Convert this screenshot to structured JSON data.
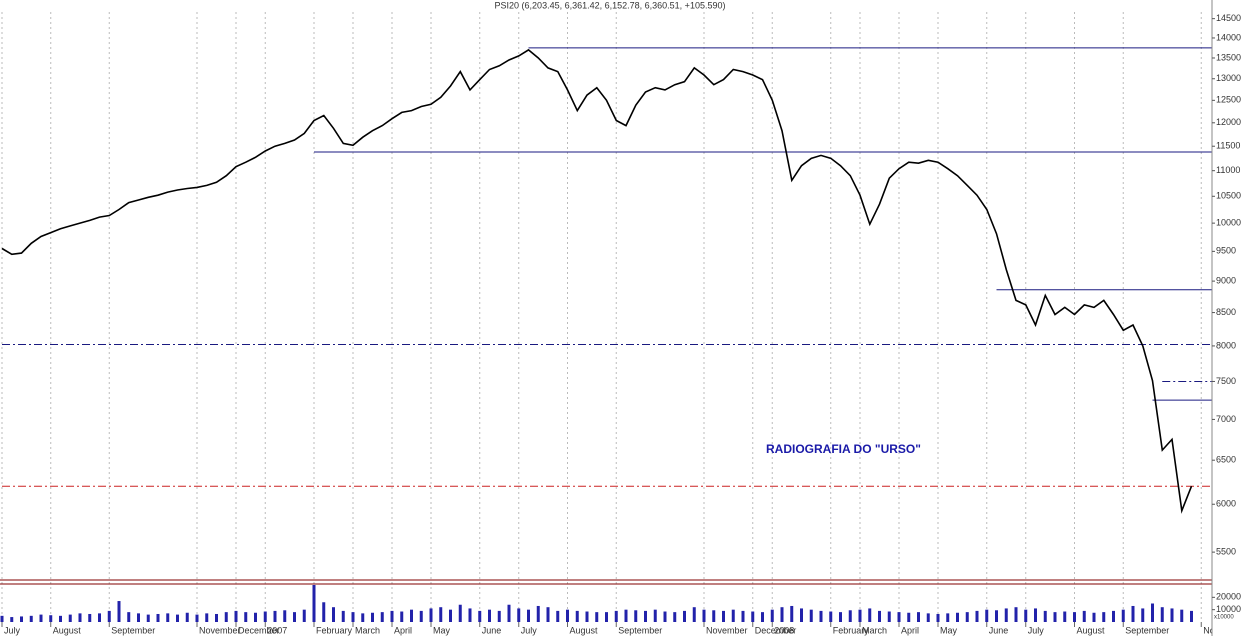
{
  "chart_data": {
    "type": "line",
    "title": "PSI20 (6,203.45, 6,361.42, 6,152.78, 6,360.51, +105.590)",
    "annotation": "RADIOGRAFIA DO \"URSO\"",
    "annotation_color": "#1a1aa8",
    "color": "#000000",
    "yscale": "log",
    "ylim": [
      5200,
      15000
    ],
    "yticks": [
      5500,
      6000,
      6500,
      7000,
      7500,
      8000,
      8500,
      9000,
      9500,
      10000,
      10500,
      11000,
      11500,
      12000,
      12500,
      13000,
      13500,
      14000,
      14500
    ],
    "categories": [
      "July",
      null,
      null,
      null,
      null,
      "August",
      null,
      null,
      null,
      null,
      null,
      "September",
      null,
      null,
      null,
      null,
      null,
      null,
      null,
      null,
      "November",
      null,
      null,
      null,
      "December",
      null,
      null,
      "2007",
      null,
      null,
      null,
      null,
      "February",
      null,
      null,
      null,
      "March",
      null,
      null,
      null,
      "April",
      null,
      null,
      null,
      "May",
      null,
      null,
      null,
      null,
      "June",
      null,
      null,
      null,
      "July",
      null,
      null,
      null,
      null,
      "August",
      null,
      null,
      null,
      null,
      "September",
      null,
      null,
      null,
      null,
      null,
      null,
      null,
      null,
      "November",
      null,
      null,
      null,
      null,
      "December",
      null,
      "2008",
      null,
      null,
      null,
      null,
      null,
      "February",
      null,
      null,
      "March",
      null,
      null,
      null,
      "April",
      null,
      null,
      null,
      "May",
      null,
      null,
      null,
      null,
      "June",
      null,
      null,
      null,
      "July",
      null,
      null,
      null,
      null,
      "August",
      null,
      null,
      null,
      null,
      "September",
      null,
      null,
      null,
      null,
      null,
      null,
      null,
      "November"
    ],
    "values": [
      9550,
      9450,
      9470,
      9640,
      9760,
      9830,
      9900,
      9950,
      10000,
      10050,
      10110,
      10140,
      10250,
      10380,
      10430,
      10480,
      10520,
      10580,
      10620,
      10650,
      10670,
      10710,
      10770,
      10900,
      11080,
      11170,
      11270,
      11400,
      11500,
      11560,
      11630,
      11770,
      12050,
      12160,
      11880,
      11560,
      11520,
      11690,
      11830,
      11940,
      12090,
      12230,
      12270,
      12360,
      12410,
      12570,
      12830,
      13170,
      12740,
      12980,
      13220,
      13310,
      13450,
      13550,
      13700,
      13500,
      13260,
      13170,
      12740,
      12270,
      12620,
      12790,
      12500,
      12050,
      11940,
      12390,
      12690,
      12790,
      12740,
      12860,
      12930,
      13260,
      13090,
      12860,
      12980,
      13220,
      13170,
      13090,
      12980,
      12500,
      11830,
      10810,
      11100,
      11250,
      11310,
      11250,
      11100,
      10900,
      10520,
      9980,
      10350,
      10850,
      11040,
      11170,
      11150,
      11210,
      11170,
      11040,
      10900,
      10710,
      10520,
      10250,
      9810,
      9190,
      8690,
      8620,
      8310,
      8770,
      8470,
      8580,
      8470,
      8620,
      8580,
      8690,
      8470,
      8230,
      8310,
      8000,
      7510,
      6620,
      6750,
      5930,
      6200,
      null
    ],
    "hlines": [
      {
        "value": 13750,
        "color": "#1a1a80",
        "style": "solid",
        "from_index": 54
      },
      {
        "value": 11380,
        "color": "#1a1a80",
        "style": "solid",
        "from_index": 32
      },
      {
        "value": 8860,
        "color": "#1a1a80",
        "style": "solid",
        "from_index": 102
      },
      {
        "value": 7250,
        "color": "#1a1a80",
        "style": "solid",
        "from_index": 118
      },
      {
        "value": 8020,
        "color": "#1a1a80",
        "style": "dashdot",
        "from_index": 0
      },
      {
        "value": 7500,
        "color": "#1a1a80",
        "style": "dashdot",
        "from_index": 119
      },
      {
        "value": 6200,
        "color": "#cc2222",
        "style": "dashdot",
        "from_index": 0
      }
    ],
    "volume": {
      "type": "bar",
      "color": "#2222aa",
      "unit_label": "x10000",
      "ylim": [
        0,
        30000
      ],
      "yticks": [
        10000,
        20000
      ],
      "values": [
        5000,
        4000,
        4500,
        5000,
        6000,
        5500,
        5000,
        6000,
        7000,
        6500,
        7000,
        9000,
        17000,
        8000,
        7000,
        6000,
        6500,
        7000,
        6000,
        7500,
        6000,
        7000,
        6500,
        8000,
        9000,
        8000,
        7500,
        8500,
        9000,
        9500,
        8000,
        10000,
        30000,
        16000,
        12000,
        9000,
        8000,
        7000,
        7500,
        8000,
        9000,
        8500,
        10000,
        9000,
        11000,
        12000,
        10000,
        14000,
        11000,
        9000,
        10000,
        9000,
        14000,
        11000,
        10000,
        13000,
        12000,
        9000,
        10000,
        9000,
        8500,
        8000,
        8000,
        9000,
        10000,
        9500,
        9000,
        10000,
        8500,
        8000,
        9000,
        12000,
        10000,
        9500,
        9000,
        10000,
        9000,
        8500,
        8000,
        10000,
        12000,
        13000,
        11000,
        10000,
        9000,
        8500,
        8000,
        9500,
        10000,
        11000,
        9000,
        8500,
        8000,
        7500,
        8000,
        7000,
        6500,
        7000,
        7500,
        8000,
        9000,
        10000,
        9500,
        11000,
        12000,
        10000,
        11000,
        9000,
        8000,
        8500,
        8000,
        9000,
        7500,
        8000,
        9000,
        10000,
        13000,
        11000,
        15000,
        12000,
        11000,
        10000,
        9000,
        null
      ]
    }
  }
}
